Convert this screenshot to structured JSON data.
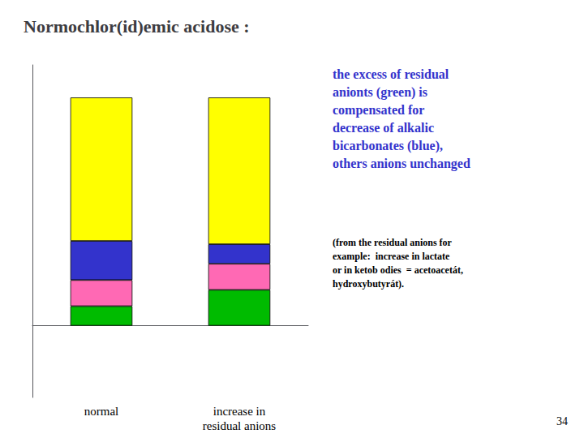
{
  "chart_data": {
    "type": "bar",
    "title": "Normochlor(id)emic acidose :",
    "categories": [
      "normal",
      "increase in\nresidual anions"
    ],
    "series": [
      {
        "color": "#00bb00",
        "values": [
          0.6,
          1.1
        ]
      },
      {
        "color": "#ff69b4",
        "values": [
          0.8,
          0.8
        ]
      },
      {
        "color": "#3333cc",
        "values": [
          1.2,
          0.6
        ]
      },
      {
        "color": "#ffff00",
        "values": [
          4.4,
          4.5
        ]
      }
    ],
    "stacked": true,
    "ylim": [
      -2.2,
      8.0
    ],
    "grid": false,
    "tick_labels": "x",
    "annotations": [
      {
        "text": "the excess of residual\nanionts (green) is\ncompensated for\ndecrease of alkalic\nbicarbonates (blue),\nothers anions unchanged",
        "color": "#3333cc"
      },
      {
        "text": "(from the residual anions for\nexample:  increase in lactate\nor in ketob odies  = acetoacetát,\nhydroxybutyrát).",
        "color": "black"
      },
      {
        "text": "34"
      }
    ]
  }
}
